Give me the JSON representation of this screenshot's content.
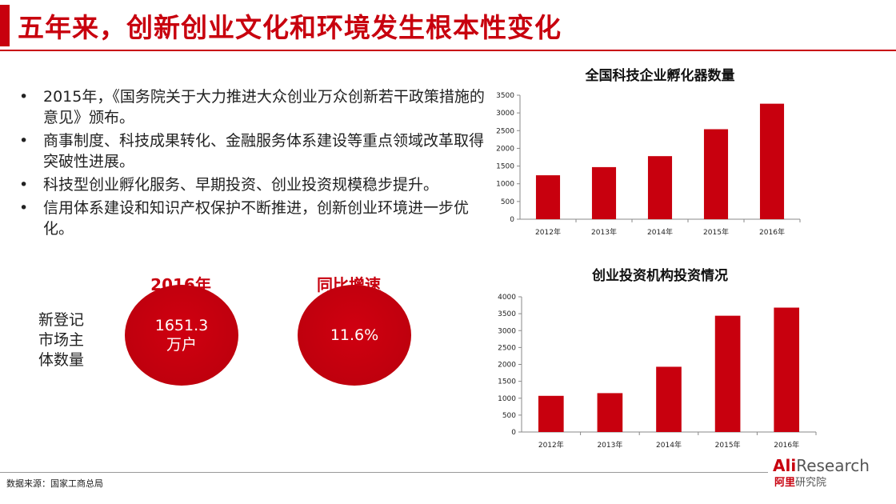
{
  "slide": {
    "title": "五年来，创新创业文化和环境发生根本性变化"
  },
  "bullets": [
    "2015年，《国务院关于大力推进大众创业万众创新若干政策措施的意见》颁布。",
    "商事制度、科技成果转化、金融服务体系建设等重点领域改革取得突破性进展。",
    "科技型创业孵化服务、早期投资、创业投资规模稳步提升。",
    "信用体系建设和知识产权保护不断推进，创新创业环境进一步优化。"
  ],
  "stats": {
    "label": "新登记市场主体数量",
    "year_header": "2016年",
    "growth_header": "同比增速",
    "registered_value": "1651.3万户",
    "growth_value": "11.6%"
  },
  "chart_data": [
    {
      "type": "bar",
      "title": "全国科技企业孵化器数量",
      "categories": [
        "2012年",
        "2013年",
        "2014年",
        "2015年",
        "2016年"
      ],
      "values": [
        1240,
        1470,
        1780,
        2540,
        3260
      ],
      "ylim": [
        0,
        3500
      ],
      "yticks": [
        0,
        500,
        1000,
        1500,
        2000,
        2500,
        3000,
        3500
      ],
      "grid": false,
      "color": "#c8000e"
    },
    {
      "type": "bar",
      "title": "创业投资机构投资情况",
      "categories": [
        "2012年",
        "2013年",
        "2014年",
        "2015年",
        "2016年"
      ],
      "values": [
        1070,
        1150,
        1930,
        3440,
        3680
      ],
      "ylim": [
        0,
        4000
      ],
      "yticks": [
        0,
        500,
        1000,
        1500,
        2000,
        2500,
        3000,
        3500,
        4000
      ],
      "grid": false,
      "color": "#c8000e"
    }
  ],
  "footer": {
    "source": "数据来源：国家工商总局",
    "logo_brand_a": "Ali",
    "logo_brand_b": "Research",
    "logo_cn_a": "阿里",
    "logo_cn_b": "研究院"
  },
  "colors": {
    "accent": "#c8000e"
  }
}
